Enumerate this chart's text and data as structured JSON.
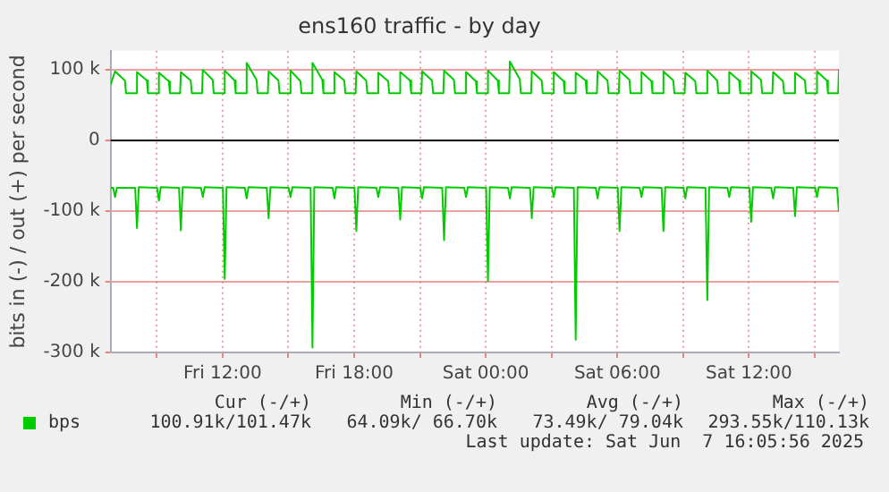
{
  "chart_data": {
    "type": "line",
    "title": "ens160 traffic - by day",
    "ylabel": "bits in (-) / out (+) per second",
    "xlim": [
      "2025-06-06T06:54",
      "2025-06-07T16:06"
    ],
    "xticks": [
      {
        "value": "2025-06-06T09:00",
        "label": null
      },
      {
        "value": "2025-06-06T12:00",
        "label": "Fri 12:00"
      },
      {
        "value": "2025-06-06T15:00",
        "label": null
      },
      {
        "value": "2025-06-06T18:00",
        "label": "Fri 18:00"
      },
      {
        "value": "2025-06-06T21:00",
        "label": null
      },
      {
        "value": "2025-06-07T00:00",
        "label": "Sat 00:00"
      },
      {
        "value": "2025-06-07T03:00",
        "label": null
      },
      {
        "value": "2025-06-07T06:00",
        "label": "Sat 06:00"
      },
      {
        "value": "2025-06-07T09:00",
        "label": null
      },
      {
        "value": "2025-06-07T12:00",
        "label": "Sat 12:00"
      },
      {
        "value": "2025-06-07T15:00",
        "label": null
      }
    ],
    "ylim": [
      -300000,
      127000
    ],
    "yticks": [
      {
        "value": -300000,
        "label": "-300 k"
      },
      {
        "value": -200000,
        "label": "-200 k"
      },
      {
        "value": -100000,
        "label": "-100 k"
      },
      {
        "value": 0,
        "label": "0"
      },
      {
        "value": 100000,
        "label": "100 k"
      }
    ],
    "grid": true,
    "legend": "bottom",
    "ref_lines": [
      {
        "axis": "y",
        "value": 0,
        "color": "#000000"
      }
    ],
    "series": [
      {
        "name": "bps",
        "color": "#00cc00",
        "x": [
          "2025-06-06T06:54",
          "2025-06-06T07:06",
          "2025-06-06T07:33",
          "2025-06-06T07:36",
          "2025-06-06T08:04",
          "2025-06-06T08:06",
          "2025-06-06T08:33",
          "2025-06-06T08:36",
          "2025-06-06T09:04",
          "2025-06-06T09:06",
          "2025-06-06T09:33",
          "2025-06-06T09:36",
          "2025-06-06T10:04",
          "2025-06-06T10:06",
          "2025-06-06T10:33",
          "2025-06-06T10:36",
          "2025-06-06T11:04",
          "2025-06-06T11:06",
          "2025-06-06T11:33",
          "2025-06-06T11:36",
          "2025-06-06T12:04",
          "2025-06-06T12:06",
          "2025-06-06T12:33",
          "2025-06-06T12:36",
          "2025-06-06T13:04",
          "2025-06-06T13:06",
          "2025-06-06T13:33",
          "2025-06-06T13:36",
          "2025-06-06T14:04",
          "2025-06-06T14:06",
          "2025-06-06T14:33",
          "2025-06-06T14:36",
          "2025-06-06T15:04",
          "2025-06-06T15:06",
          "2025-06-06T15:33",
          "2025-06-06T15:36",
          "2025-06-06T16:04",
          "2025-06-06T16:06",
          "2025-06-06T16:33",
          "2025-06-06T16:36",
          "2025-06-06T17:04",
          "2025-06-06T17:06",
          "2025-06-06T17:33",
          "2025-06-06T17:36",
          "2025-06-06T18:04",
          "2025-06-06T18:06",
          "2025-06-06T18:33",
          "2025-06-06T18:36",
          "2025-06-06T19:04",
          "2025-06-06T19:06",
          "2025-06-06T19:33",
          "2025-06-06T19:36",
          "2025-06-06T20:04",
          "2025-06-06T20:06",
          "2025-06-06T20:33",
          "2025-06-06T20:36",
          "2025-06-06T21:04",
          "2025-06-06T21:06",
          "2025-06-06T21:33",
          "2025-06-06T21:36",
          "2025-06-06T22:04",
          "2025-06-06T22:06",
          "2025-06-06T22:33",
          "2025-06-06T22:36",
          "2025-06-06T23:04",
          "2025-06-06T23:06",
          "2025-06-06T23:33",
          "2025-06-06T23:36",
          "2025-06-07T00:04",
          "2025-06-07T00:06",
          "2025-06-07T00:33",
          "2025-06-07T00:36",
          "2025-06-07T01:04",
          "2025-06-07T01:06",
          "2025-06-07T01:33",
          "2025-06-07T01:36",
          "2025-06-07T02:04",
          "2025-06-07T02:06",
          "2025-06-07T02:33",
          "2025-06-07T02:36",
          "2025-06-07T03:04",
          "2025-06-07T03:06",
          "2025-06-07T03:33",
          "2025-06-07T03:36",
          "2025-06-07T04:04",
          "2025-06-07T04:06",
          "2025-06-07T04:33",
          "2025-06-07T04:36",
          "2025-06-07T05:04",
          "2025-06-07T05:06",
          "2025-06-07T05:33",
          "2025-06-07T05:36",
          "2025-06-07T06:04",
          "2025-06-07T06:06",
          "2025-06-07T06:33",
          "2025-06-07T06:36",
          "2025-06-07T07:04",
          "2025-06-07T07:06",
          "2025-06-07T07:33",
          "2025-06-07T07:36",
          "2025-06-07T08:04",
          "2025-06-07T08:06",
          "2025-06-07T08:33",
          "2025-06-07T08:36",
          "2025-06-07T09:04",
          "2025-06-07T09:06",
          "2025-06-07T09:33",
          "2025-06-07T09:36",
          "2025-06-07T10:04",
          "2025-06-07T10:06",
          "2025-06-07T10:33",
          "2025-06-07T10:36",
          "2025-06-07T11:04",
          "2025-06-07T11:06",
          "2025-06-07T11:33",
          "2025-06-07T11:36",
          "2025-06-07T12:04",
          "2025-06-07T12:06",
          "2025-06-07T12:33",
          "2025-06-07T12:36",
          "2025-06-07T13:04",
          "2025-06-07T13:06",
          "2025-06-07T13:33",
          "2025-06-07T13:36",
          "2025-06-07T14:04",
          "2025-06-07T14:06",
          "2025-06-07T14:33",
          "2025-06-07T14:36",
          "2025-06-07T15:04",
          "2025-06-07T15:06",
          "2025-06-07T15:33",
          "2025-06-07T15:36",
          "2025-06-07T16:04",
          "2025-06-07T16:06"
        ],
        "values": [
          79000,
          98000,
          85000,
          67000,
          67000,
          97000,
          85000,
          67000,
          67000,
          96000,
          84000,
          67000,
          67000,
          97000,
          85000,
          67000,
          67000,
          100000,
          86000,
          67000,
          67000,
          99000,
          85000,
          67000,
          67000,
          110000,
          86000,
          67000,
          67000,
          98000,
          85000,
          67000,
          67000,
          99000,
          84000,
          67000,
          67000,
          110000,
          86000,
          67000,
          67000,
          97000,
          85000,
          67000,
          67000,
          98000,
          85000,
          67000,
          67000,
          96000,
          84000,
          67000,
          67000,
          97000,
          85000,
          67000,
          67000,
          98000,
          85000,
          67000,
          67000,
          99000,
          86000,
          67000,
          67000,
          97000,
          84000,
          67000,
          67000,
          99000,
          85000,
          67000,
          67000,
          112000,
          87000,
          67000,
          67000,
          98000,
          85000,
          67000,
          67000,
          97000,
          84000,
          67000,
          67000,
          96000,
          85000,
          67000,
          67000,
          98000,
          85000,
          67000,
          67000,
          99000,
          86000,
          67000,
          67000,
          97000,
          84000,
          67000,
          67000,
          98000,
          85000,
          67000,
          67000,
          96000,
          84000,
          67000,
          67000,
          99000,
          85000,
          67000,
          67000,
          97000,
          85000,
          67000,
          67000,
          98000,
          86000,
          67000,
          67000,
          97000,
          84000,
          67000,
          67000,
          96000,
          85000,
          67000,
          67000,
          98000,
          85000,
          67000,
          67000,
          101000
        ]
      },
      {
        "color": "#00cc00",
        "x": [
          "2025-06-06T06:54",
          "2025-06-06T07:01",
          "2025-06-06T07:06",
          "2025-06-06T07:11",
          "2025-06-06T08:01",
          "2025-06-06T08:06",
          "2025-06-06T08:11",
          "2025-06-06T09:01",
          "2025-06-06T09:06",
          "2025-06-06T09:11",
          "2025-06-06T10:01",
          "2025-06-06T10:06",
          "2025-06-06T10:11",
          "2025-06-06T11:01",
          "2025-06-06T11:06",
          "2025-06-06T11:11",
          "2025-06-06T12:01",
          "2025-06-06T12:06",
          "2025-06-06T12:11",
          "2025-06-06T13:01",
          "2025-06-06T13:06",
          "2025-06-06T13:11",
          "2025-06-06T14:01",
          "2025-06-06T14:06",
          "2025-06-06T14:11",
          "2025-06-06T15:01",
          "2025-06-06T15:06",
          "2025-06-06T15:11",
          "2025-06-06T16:01",
          "2025-06-06T16:06",
          "2025-06-06T16:11",
          "2025-06-06T17:01",
          "2025-06-06T17:06",
          "2025-06-06T17:11",
          "2025-06-06T18:01",
          "2025-06-06T18:06",
          "2025-06-06T18:11",
          "2025-06-06T19:01",
          "2025-06-06T19:06",
          "2025-06-06T19:11",
          "2025-06-06T20:01",
          "2025-06-06T20:06",
          "2025-06-06T20:11",
          "2025-06-06T21:01",
          "2025-06-06T21:06",
          "2025-06-06T21:11",
          "2025-06-06T22:01",
          "2025-06-06T22:06",
          "2025-06-06T22:11",
          "2025-06-06T23:01",
          "2025-06-06T23:06",
          "2025-06-06T23:11",
          "2025-06-07T00:01",
          "2025-06-07T00:06",
          "2025-06-07T00:11",
          "2025-06-07T01:01",
          "2025-06-07T01:06",
          "2025-06-07T01:11",
          "2025-06-07T02:01",
          "2025-06-07T02:06",
          "2025-06-07T02:11",
          "2025-06-07T03:01",
          "2025-06-07T03:06",
          "2025-06-07T03:11",
          "2025-06-07T04:01",
          "2025-06-07T04:06",
          "2025-06-07T04:11",
          "2025-06-07T05:01",
          "2025-06-07T05:06",
          "2025-06-07T05:11",
          "2025-06-07T06:01",
          "2025-06-07T06:06",
          "2025-06-07T06:11",
          "2025-06-07T07:01",
          "2025-06-07T07:06",
          "2025-06-07T07:11",
          "2025-06-07T08:01",
          "2025-06-07T08:06",
          "2025-06-07T08:11",
          "2025-06-07T09:01",
          "2025-06-07T09:06",
          "2025-06-07T09:11",
          "2025-06-07T10:01",
          "2025-06-07T10:06",
          "2025-06-07T10:11",
          "2025-06-07T11:01",
          "2025-06-07T11:06",
          "2025-06-07T11:11",
          "2025-06-07T12:01",
          "2025-06-07T12:06",
          "2025-06-07T12:11",
          "2025-06-07T13:01",
          "2025-06-07T13:06",
          "2025-06-07T13:11",
          "2025-06-07T14:01",
          "2025-06-07T14:06",
          "2025-06-07T14:11",
          "2025-06-07T15:01",
          "2025-06-07T15:06",
          "2025-06-07T15:11",
          "2025-06-07T16:01",
          "2025-06-07T16:06"
        ],
        "values": [
          -67000,
          -67000,
          -80000,
          -67000,
          -67000,
          -124000,
          -66000,
          -67000,
          -85000,
          -66000,
          -67000,
          -127000,
          -66000,
          -67000,
          -80000,
          -66000,
          -67000,
          -196000,
          -66000,
          -67000,
          -82000,
          -66000,
          -67000,
          -110000,
          -66000,
          -67000,
          -80000,
          -66000,
          -67000,
          -293000,
          -66000,
          -67000,
          -82000,
          -66000,
          -67000,
          -128000,
          -66000,
          -67000,
          -80000,
          -66000,
          -67000,
          -112000,
          -66000,
          -67000,
          -82000,
          -66000,
          -67000,
          -141000,
          -66000,
          -67000,
          -80000,
          -66000,
          -67000,
          -199000,
          -66000,
          -67000,
          -82000,
          -66000,
          -67000,
          -110000,
          -66000,
          -67000,
          -80000,
          -66000,
          -67000,
          -282000,
          -66000,
          -67000,
          -82000,
          -66000,
          -67000,
          -128000,
          -66000,
          -67000,
          -80000,
          -66000,
          -67000,
          -128000,
          -66000,
          -67000,
          -82000,
          -66000,
          -67000,
          -226000,
          -66000,
          -67000,
          -80000,
          -66000,
          -67000,
          -115000,
          -66000,
          -67000,
          -82000,
          -66000,
          -67000,
          -107000,
          -66000,
          -67000,
          -80000,
          -66000,
          -67000,
          -101000
        ]
      }
    ],
    "annotations": [
      "Cur (-/+)",
      "Min (-/+)",
      "Avg (-/+)",
      "Max (-/+)",
      "100.91k/101.47k",
      "64.09k/ 66.70k",
      "73.49k/ 79.04k",
      "293.55k/110.13k",
      "Last update: Sat Jun  7 16:05:56 2025"
    ]
  }
}
